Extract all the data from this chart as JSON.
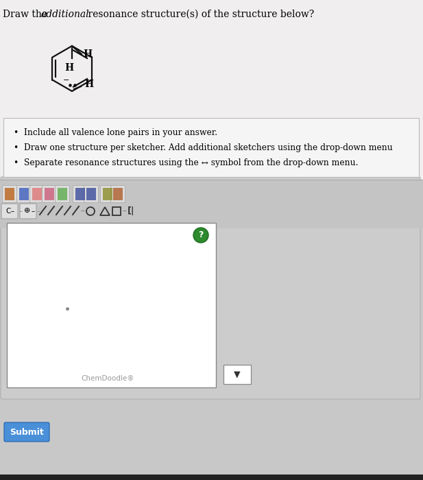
{
  "bg_color": "#c8c8c8",
  "white_area_color": "#f0eeee",
  "title_fontsize": 10,
  "instructions": [
    "Include all valence lone pairs in your answer.",
    "Draw one structure per sketcher. Add additional sketchers using the drop-down menu",
    "Separate resonance structures using the ↔ symbol from the drop-down menu."
  ],
  "instr_box_color": "#f5f5f5",
  "submit_btn_color": "#4a90d9",
  "submit_text": "Submit",
  "chemdoodle_text": "ChemDoodle®",
  "help_btn_color": "#2d8a2d",
  "toolbar_bg": "#c0c0c0",
  "canvas_bg": "#f8f8f8",
  "bottom_bar_color": "#222222"
}
